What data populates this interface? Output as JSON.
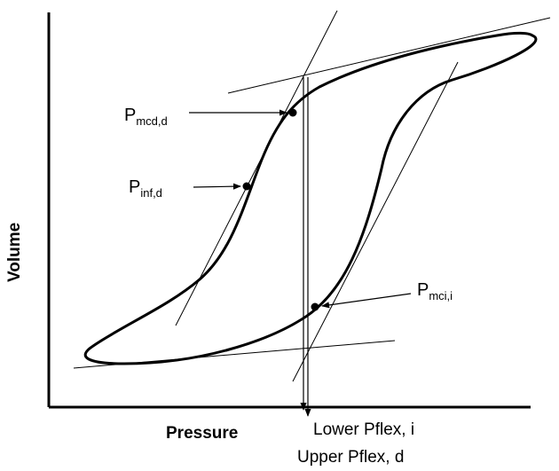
{
  "axes": {
    "x_label": "Pressure",
    "y_label": "Volume"
  },
  "callouts": [
    {
      "id": "p_mcd_d",
      "main": "P",
      "sub": "mcd,d"
    },
    {
      "id": "p_inf_d",
      "main": "P",
      "sub": "inf,d"
    },
    {
      "id": "p_mci_i",
      "main": "P",
      "sub": "mci,i"
    }
  ],
  "pflex": {
    "lower": "Lower Pflex, i",
    "upper": "Upper Pflex, d"
  },
  "colors": {
    "ink": "#000000",
    "background": "#ffffff"
  }
}
